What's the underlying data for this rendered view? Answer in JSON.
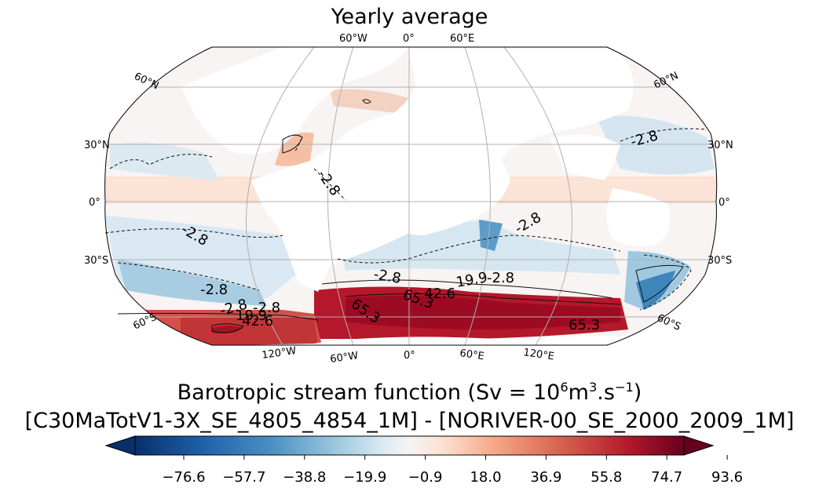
{
  "title": "Yearly average",
  "colorbar": {
    "title_prefix": "Barotropic stream function (Sv = 10",
    "title_sup1": "6",
    "title_mid": "m",
    "title_sup2": "3",
    "title_mid2": ".s",
    "title_sup3": "−1",
    "title_suffix": ")",
    "subtitle": "[C30MaTotV1-3X_SE_4805_4854_1M] - [NORIVER-00_SE_2000_2009_1M]",
    "ticks": [
      "−76.6",
      "−57.7",
      "−38.8",
      "−19.9",
      "−0.9",
      "18.0",
      "36.9",
      "55.8",
      "74.7",
      "93.6"
    ],
    "colormap": "RdBu_r",
    "extend": "both"
  },
  "map": {
    "projection": "Robinson",
    "lon_labels_top": [
      "60°W",
      "0°",
      "60°E"
    ],
    "lon_labels_bottom": [
      "120°W",
      "60°W",
      "0°",
      "60°E",
      "120°E"
    ],
    "lat_labels_left": [
      "60°N",
      "30°N",
      "0°",
      "30°S",
      "60°S"
    ],
    "lat_labels_right": [
      "60°N",
      "30°N",
      "0°",
      "30°S",
      "60°S"
    ],
    "contour_labels": [
      "-2.8",
      "-2.8",
      "-2.8",
      "-2.8",
      "-2.8",
      "-2.8",
      "-2.8",
      "-2.8",
      "-2.8",
      "19.9",
      "19.9",
      "42.6",
      "42.6",
      "65.3",
      "65.3",
      "65.3"
    ]
  },
  "colors": {
    "deep_red": "#9e0c22",
    "red": "#c8323a",
    "light_red": "#f4b799",
    "pale_red": "#fbe3d6",
    "pale_blue": "#d9e9f2",
    "light_blue": "#a7cde3",
    "blue": "#4a8fc0",
    "grid": "#b0b0b0"
  }
}
